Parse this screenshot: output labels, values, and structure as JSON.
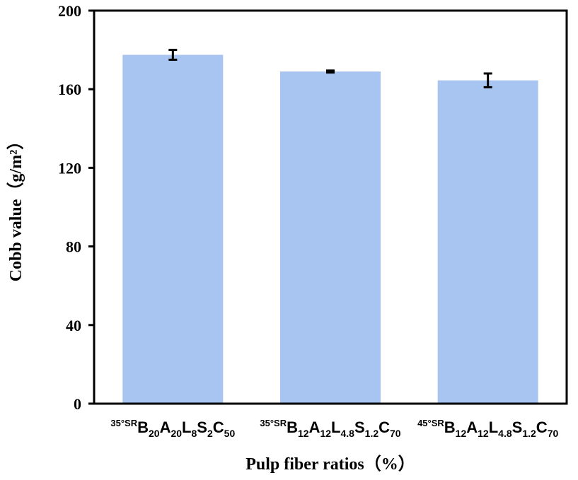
{
  "chart_data": {
    "type": "bar",
    "xlabel": "Pulp fiber ratios（%）",
    "ylabel": "Cobb value（g/m²）",
    "ylim": [
      0,
      200
    ],
    "yticks": [
      0,
      40,
      80,
      120,
      160,
      200
    ],
    "grid": false,
    "categories": [
      "35°SRB20A20L8S2C50",
      "35°SRB12A12L4.8S1.2C70",
      "45°SRB12A12L4.8S1.2C70"
    ],
    "category_parts": [
      [
        [
          "35°SR",
          "sup"
        ],
        [
          "B",
          "n"
        ],
        [
          "20",
          "sub"
        ],
        [
          "A",
          "n"
        ],
        [
          "20",
          "sub"
        ],
        [
          "L",
          "n"
        ],
        [
          "8",
          "sub"
        ],
        [
          "S",
          "n"
        ],
        [
          "2",
          "sub"
        ],
        [
          "C",
          "n"
        ],
        [
          "50",
          "sub"
        ]
      ],
      [
        [
          "35°SR",
          "sup"
        ],
        [
          "B",
          "n"
        ],
        [
          "12",
          "sub"
        ],
        [
          "A",
          "n"
        ],
        [
          "12",
          "sub"
        ],
        [
          "L",
          "n"
        ],
        [
          "4.8",
          "sub"
        ],
        [
          "S",
          "n"
        ],
        [
          "1.2",
          "sub"
        ],
        [
          "C",
          "n"
        ],
        [
          "70",
          "sub"
        ]
      ],
      [
        [
          "45°SR",
          "sup"
        ],
        [
          "B",
          "n"
        ],
        [
          "12",
          "sub"
        ],
        [
          "A",
          "n"
        ],
        [
          "12",
          "sub"
        ],
        [
          "L",
          "n"
        ],
        [
          "4.8",
          "sub"
        ],
        [
          "S",
          "n"
        ],
        [
          "1.2",
          "sub"
        ],
        [
          "C",
          "n"
        ],
        [
          "70",
          "sub"
        ]
      ]
    ],
    "values": [
      177.5,
      169,
      164.5
    ],
    "errors": [
      2.5,
      0.5,
      3.5
    ],
    "bar_color": "#a8c4f0"
  }
}
